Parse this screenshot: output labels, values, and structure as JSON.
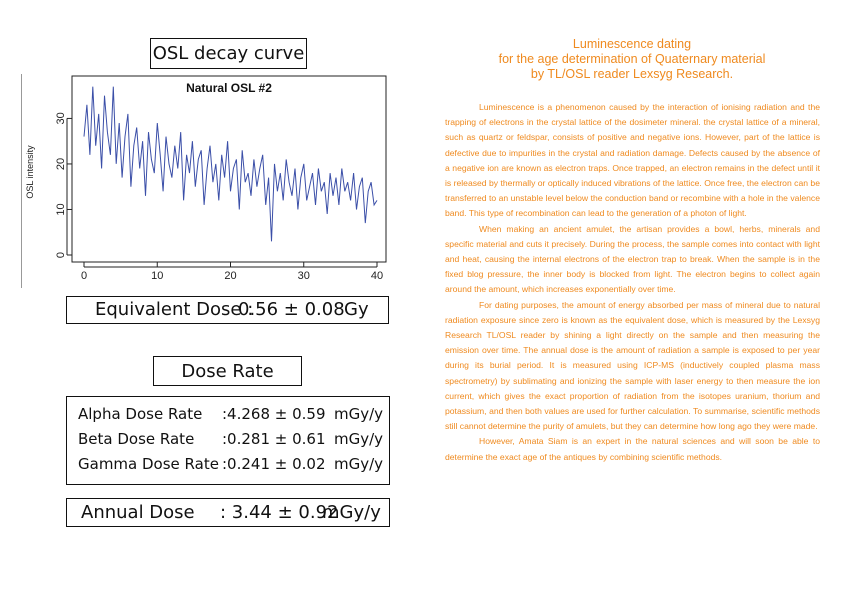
{
  "osl_section": {
    "title": "OSL decay curve"
  },
  "chart_data": {
    "type": "line",
    "title": "Natural OSL #2",
    "xlabel": "",
    "ylabel": "OSL intensity",
    "xlim": [
      0,
      40
    ],
    "ylim": [
      0,
      38
    ],
    "x_ticks": [
      "0",
      "10",
      "20",
      "30",
      "40"
    ],
    "y_ticks": [
      "0",
      "10",
      "20",
      "30"
    ],
    "grid": false,
    "color": "#3b4fa8",
    "series": [
      {
        "x": [
          0,
          0.4,
          0.8,
          1.2,
          1.6,
          2.0,
          2.4,
          2.8,
          3.2,
          3.6,
          4.0,
          4.4,
          4.8,
          5.2,
          5.6,
          6.0,
          6.4,
          6.8,
          7.2,
          7.6,
          8.0,
          8.4,
          8.8,
          9.2,
          9.6,
          10.0,
          10.4,
          10.8,
          11.2,
          11.6,
          12.0,
          12.4,
          12.8,
          13.2,
          13.6,
          14.0,
          14.4,
          14.8,
          15.2,
          15.6,
          16.0,
          16.4,
          16.8,
          17.2,
          17.6,
          18.0,
          18.4,
          18.8,
          19.2,
          19.6,
          20.0,
          20.4,
          20.8,
          21.2,
          21.6,
          22.0,
          22.4,
          22.8,
          23.2,
          23.6,
          24.0,
          24.4,
          24.8,
          25.2,
          25.6,
          26.0,
          26.4,
          26.8,
          27.2,
          27.6,
          28.0,
          28.4,
          28.8,
          29.2,
          29.6,
          30.0,
          30.4,
          30.8,
          31.2,
          31.6,
          32.0,
          32.4,
          32.8,
          33.2,
          33.6,
          34.0,
          34.4,
          34.8,
          35.2,
          35.6,
          36.0,
          36.4,
          36.8,
          37.2,
          37.6,
          38.0,
          38.4,
          38.8,
          39.2,
          39.6,
          40.0
        ],
        "y": [
          26,
          33,
          22,
          37,
          24,
          31,
          19,
          35,
          27,
          22,
          37,
          20,
          29,
          17,
          26,
          31,
          15,
          24,
          28,
          19,
          25,
          13,
          27,
          21,
          18,
          29,
          22,
          14,
          26,
          20,
          17,
          24,
          19,
          27,
          12,
          22,
          18,
          25,
          15,
          21,
          23,
          11,
          19,
          24,
          16,
          20,
          12,
          22,
          17,
          25,
          14,
          19,
          21,
          10,
          23,
          16,
          18,
          13,
          21,
          15,
          19,
          22,
          11,
          17,
          3,
          20,
          14,
          18,
          12,
          21,
          16,
          13,
          19,
          10,
          17,
          20,
          12,
          15,
          18,
          11,
          19,
          14,
          16,
          9,
          18,
          13,
          17,
          11,
          19,
          14,
          16,
          12,
          18,
          10,
          15,
          17,
          7,
          14,
          16,
          11,
          12
        ]
      }
    ]
  },
  "equivalent_dose": {
    "label": "Equivalent Dose :",
    "value": "0.56 ± 0.08",
    "unit": "Gy"
  },
  "dose_rate": {
    "title": "Dose Rate",
    "rows": [
      {
        "label": "Alpha Dose Rate",
        "value": ":4.268 ± 0.59",
        "unit": "mGy/y"
      },
      {
        "label": "Beta Dose Rate",
        "value": ":0.281 ± 0.61",
        "unit": "mGy/y"
      },
      {
        "label": "Gamma Dose Rate",
        "value": ":0.241 ± 0.02",
        "unit": "mGy/y"
      }
    ]
  },
  "annual_dose": {
    "label": "Annual Dose",
    "value": ": 3.44 ± 0.92",
    "unit": "mGy/y"
  },
  "document": {
    "accent_color": "#ef8a1f",
    "heading_lines": [
      "Luminescence dating",
      "for the age determination of Quaternary material",
      "by TL/OSL reader Lexsyg Research."
    ],
    "paragraphs": [
      "Luminescence is a phenomenon caused by the interaction of ionising radiation and the trapping of electrons in the crystal lattice of the dosimeter mineral. the crystal lattice of a mineral, such as quartz or feldspar, consists of positive and negative ions. However, part of the lattice is defective due to impurities in the crystal and radiation damage. Defects caused by the absence of a negative ion are known as electron traps. Once trapped, an electron remains in the defect until it is released by thermally or optically induced vibrations of the lattice. Once free, the electron can be transferred to an unstable level below the conduction band or recombine with a hole in the valence band. This type of recombination can lead to the generation of a photon of light.",
      "When making an ancient amulet, the artisan provides a bowl, herbs, minerals and specific material and cuts it precisely. During the process, the sample comes into contact with light and heat, causing the internal electrons of the electron trap to break. When the sample is in the fixed blog pressure, the inner body is blocked from light. The electron begins to collect again around the amount, which increases exponentially over time.",
      "For dating purposes, the amount of energy absorbed per mass of mineral due to natural radiation exposure since zero is known as the equivalent dose, which is measured by the Lexsyg Research TL/OSL reader by shining a light directly on the sample and then measuring the emission over time. The annual dose is the amount of radiation a sample is exposed to per year during its burial period. It is measured using ICP-MS (inductively coupled plasma mass spectrometry) by sublimating and ionizing the sample with laser energy to then measure the ion current, which gives the exact proportion of radiation from the isotopes uranium, thorium and potassium, and then both values are used for further calculation. To summarise, scientific methods still cannot determine the purity of amulets, but they can determine how long ago they were made.",
      "However, Amata Siam is an expert in the natural sciences and will soon be able to determine the exact age of the antiques by combining scientific methods."
    ]
  }
}
